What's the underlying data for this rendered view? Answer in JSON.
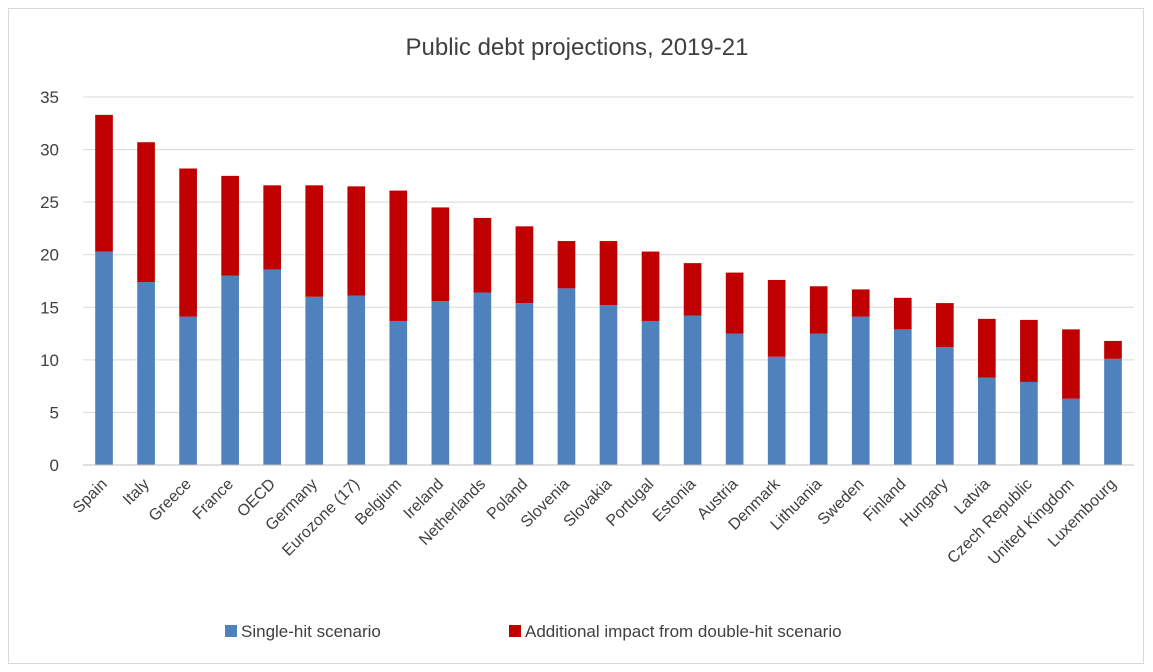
{
  "chart_data": {
    "type": "bar",
    "stacked": true,
    "title": "Public debt projections, 2019-21",
    "xlabel": "",
    "ylabel": "",
    "ylim": [
      0,
      35
    ],
    "yticks": [
      0,
      5,
      10,
      15,
      20,
      25,
      30,
      35
    ],
    "grid": true,
    "legend_position": "bottom",
    "categories": [
      "Spain",
      "Italy",
      "Greece",
      "France",
      "OECD",
      "Germany",
      "Eurozone (17)",
      "Belgium",
      "Ireland",
      "Netherlands",
      "Poland",
      "Slovenia",
      "Slovakia",
      "Portugal",
      "Estonia",
      "Austria",
      "Denmark",
      "Lithuania",
      "Sweden",
      "Finland",
      "Hungary",
      "Latvia",
      "Czech Republic",
      "United Kingdom",
      "Luxembourg"
    ],
    "series": [
      {
        "name": "Single-hit scenario",
        "color": "#4f81bd",
        "values": [
          20.3,
          17.4,
          14.1,
          18.0,
          18.6,
          16.0,
          16.1,
          13.7,
          15.6,
          16.4,
          15.4,
          16.8,
          15.2,
          13.7,
          14.2,
          12.5,
          10.3,
          12.5,
          14.1,
          12.9,
          11.2,
          8.3,
          7.9,
          6.3,
          10.1
        ]
      },
      {
        "name": "Additional impact from double-hit scenario",
        "color": "#c00000",
        "values": [
          13.0,
          13.3,
          14.1,
          9.5,
          8.0,
          10.6,
          10.4,
          12.4,
          8.9,
          7.1,
          7.3,
          4.5,
          6.1,
          6.6,
          5.0,
          5.8,
          7.3,
          4.5,
          2.6,
          3.0,
          4.2,
          5.6,
          5.9,
          6.6,
          1.7
        ]
      }
    ]
  }
}
